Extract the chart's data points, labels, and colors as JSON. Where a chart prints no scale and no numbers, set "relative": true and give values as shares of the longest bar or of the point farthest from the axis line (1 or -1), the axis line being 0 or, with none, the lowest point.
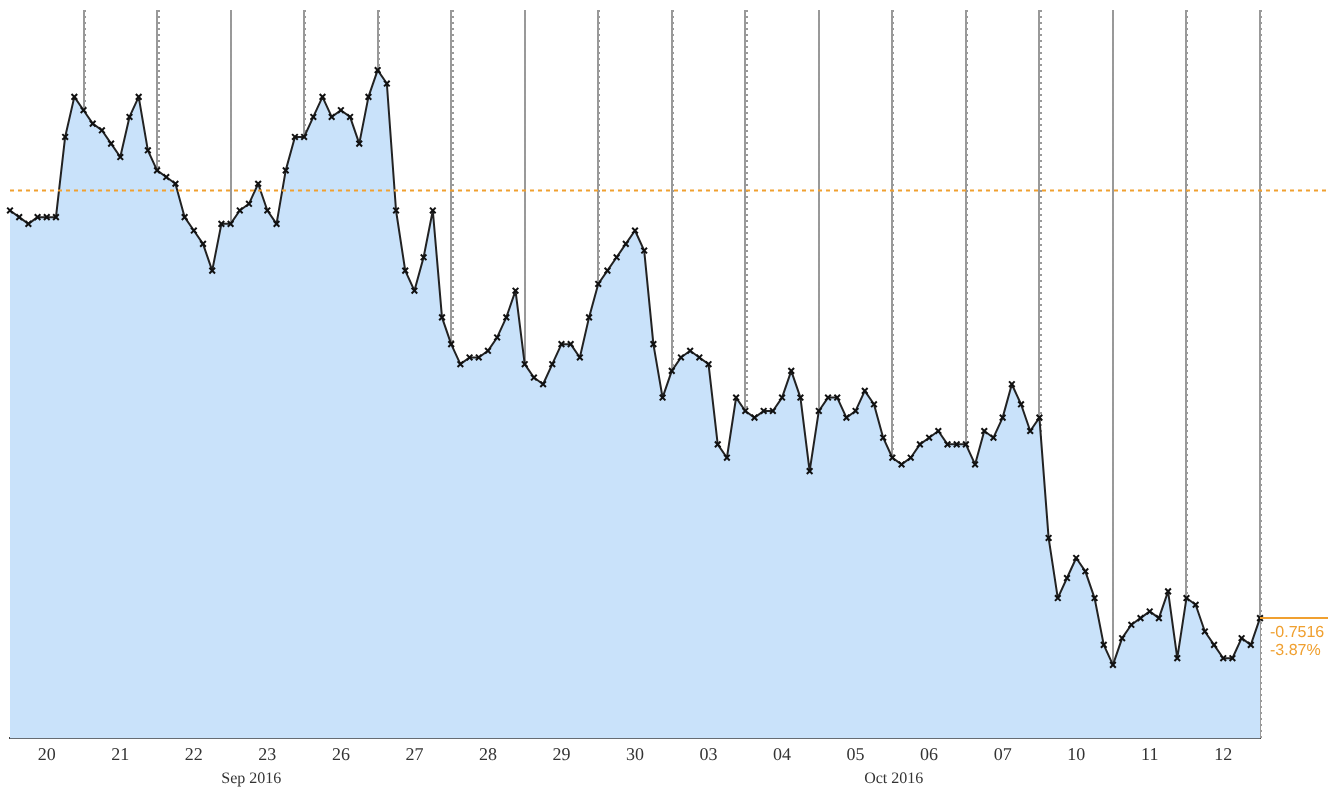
{
  "chart_data": {
    "type": "area",
    "relative": true,
    "grid": "x",
    "legend": false,
    "marker": "cross",
    "line_style": "solid",
    "categories": [
      null,
      null,
      null,
      null,
      "20",
      null,
      null,
      null,
      null,
      null,
      null,
      null,
      "21",
      null,
      null,
      null,
      null,
      null,
      null,
      null,
      "22",
      null,
      null,
      null,
      null,
      null,
      null,
      null,
      "23",
      null,
      null,
      null,
      null,
      null,
      null,
      null,
      "26",
      null,
      null,
      null,
      null,
      null,
      null,
      null,
      "27",
      null,
      null,
      null,
      null,
      null,
      null,
      null,
      "28",
      null,
      null,
      null,
      null,
      null,
      null,
      null,
      "29",
      null,
      null,
      null,
      null,
      null,
      null,
      null,
      "30",
      null,
      null,
      null,
      null,
      null,
      null,
      null,
      "03",
      null,
      null,
      null,
      null,
      null,
      null,
      null,
      "04",
      null,
      null,
      null,
      null,
      null,
      null,
      null,
      "05",
      null,
      null,
      null,
      null,
      null,
      null,
      null,
      "06",
      null,
      null,
      null,
      null,
      null,
      null,
      null,
      "07",
      null,
      null,
      null,
      null,
      null,
      null,
      null,
      "10",
      null,
      null,
      null,
      null,
      null,
      null,
      null,
      "11",
      null,
      null,
      null,
      null,
      null,
      null,
      null,
      "12",
      null,
      null,
      null,
      null
    ],
    "series": [
      {
        "color": "#c9e2fa",
        "values": [
          0.79,
          0.78,
          0.77,
          0.78,
          0.78,
          0.78,
          0.9,
          0.96,
          0.94,
          0.92,
          0.91,
          0.89,
          0.87,
          0.93,
          0.96,
          0.88,
          0.85,
          0.84,
          0.83,
          0.78,
          0.76,
          0.74,
          0.7,
          0.77,
          0.77,
          0.79,
          0.8,
          0.83,
          0.79,
          0.77,
          0.85,
          0.9,
          0.9,
          0.93,
          0.96,
          0.93,
          0.94,
          0.93,
          0.89,
          0.96,
          1,
          0.98,
          0.79,
          0.7,
          0.67,
          0.72,
          0.79,
          0.63,
          0.59,
          0.56,
          0.57,
          0.57,
          0.58,
          0.6,
          0.63,
          0.67,
          0.56,
          0.54,
          0.53,
          0.56,
          0.59,
          0.59,
          0.57,
          0.63,
          0.68,
          0.7,
          0.72,
          0.74,
          0.76,
          0.73,
          0.59,
          0.51,
          0.55,
          0.57,
          0.58,
          0.57,
          0.56,
          0.44,
          0.42,
          0.51,
          0.49,
          0.48,
          0.49,
          0.49,
          0.51,
          0.55,
          0.51,
          0.4,
          0.49,
          0.51,
          0.51,
          0.48,
          0.49,
          0.52,
          0.5,
          0.45,
          0.42,
          0.41,
          0.42,
          0.44,
          0.45,
          0.46,
          0.44,
          0.44,
          0.44,
          0.41,
          0.46,
          0.45,
          0.48,
          0.53,
          0.5,
          0.46,
          0.48,
          0.3,
          0.21,
          0.24,
          0.27,
          0.25,
          0.21,
          0.14,
          0.11,
          0.15,
          0.17,
          0.18,
          0.19,
          0.18,
          0.22,
          0.12,
          0.21,
          0.2,
          0.16,
          0.14,
          0.12,
          0.12,
          0.15,
          0.14,
          0.18
        ]
      }
    ],
    "ref_lines": [
      {
        "axis": "y",
        "value": 0.82,
        "color": "#f0a030",
        "line_style": "dotted"
      }
    ],
    "annotations": [
      "-0.7516",
      "-3.87%",
      "Sep 2016",
      "Oct 2016"
    ]
  }
}
